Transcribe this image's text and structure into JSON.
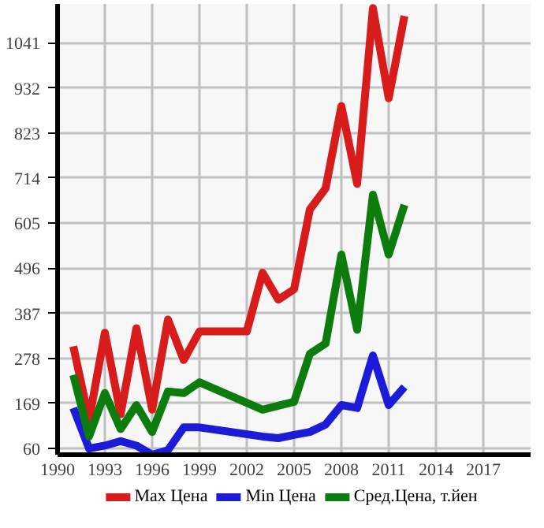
{
  "chart_data": {
    "type": "line",
    "xlim": [
      1990,
      2020
    ],
    "ylim": [
      45,
      1135
    ],
    "xticks": [
      1990,
      1993,
      1996,
      1999,
      2002,
      2005,
      2008,
      2011,
      2014,
      2017
    ],
    "yticks": [
      60,
      169,
      278,
      387,
      496,
      605,
      714,
      823,
      932,
      1041
    ],
    "grid": true,
    "legend": "bottom",
    "line_style": "solid",
    "marker": "none",
    "series": [
      {
        "name": "Max Цена",
        "color": "#d81c1c",
        "x": [
          1991,
          1992,
          1993,
          1994,
          1995,
          1996,
          1997,
          1998,
          1999,
          2002,
          2003,
          2004,
          2005,
          2006,
          2007,
          2008,
          2009,
          2010,
          2011,
          2012
        ],
        "values": [
          307,
          129,
          340,
          143,
          351,
          154,
          372,
          274,
          343,
          343,
          485,
          420,
          445,
          638,
          689,
          888,
          700,
          1125,
          907,
          1106
        ]
      },
      {
        "name": "Min Цена",
        "color": "#1c1cd8",
        "x": [
          1991,
          1992,
          1993,
          1994,
          1995,
          1996,
          1997,
          1998,
          1999,
          2003,
          2004,
          2005,
          2006,
          2007,
          2008,
          2009,
          2010,
          2011,
          2012
        ],
        "values": [
          158,
          60,
          67,
          78,
          67,
          45,
          56,
          111,
          111,
          89,
          85,
          93,
          100,
          118,
          165,
          158,
          285,
          165,
          209
        ]
      },
      {
        "name": "Сред.Цена, т.йен",
        "color": "#0c7c0c",
        "x": [
          1991,
          1992,
          1993,
          1994,
          1995,
          1996,
          1997,
          1998,
          1999,
          2003,
          2005,
          2006,
          2007,
          2008,
          2009,
          2010,
          2011,
          2012
        ],
        "values": [
          238,
          89,
          194,
          107,
          165,
          100,
          198,
          194,
          220,
          154,
          173,
          289,
          314,
          529,
          347,
          674,
          529,
          649
        ]
      }
    ]
  }
}
